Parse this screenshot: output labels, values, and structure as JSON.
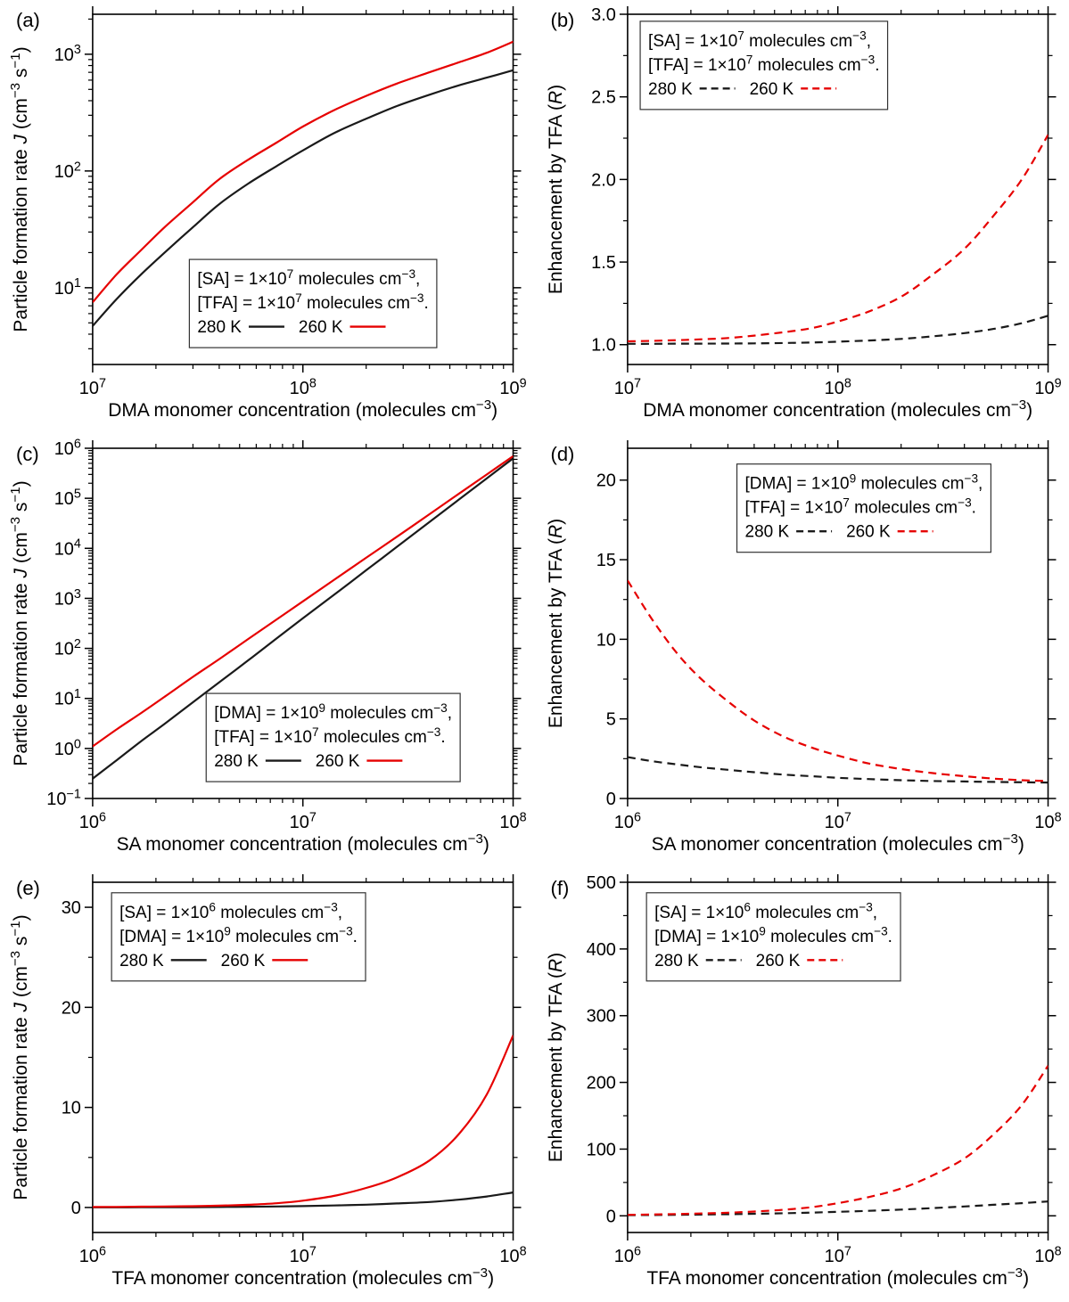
{
  "figure": {
    "background": "#ffffff"
  },
  "colors": {
    "black": "#1a1a1a",
    "red": "#e60000",
    "axis": "#000000",
    "legend_border": "#333333"
  },
  "chart_data": [
    {
      "id": "a",
      "panel_label": "(a)",
      "type": "line",
      "xlabel": "DMA monomer concentration (molecules cm^{−3})",
      "ylabel": "Particle formation rate *J* (cm^{−3} s^{−1})",
      "x": {
        "scale": "log",
        "min": 10000000.0,
        "max": 1000000000.0,
        "majors": [
          {
            "v": 10000000.0,
            "label": "10^{7}"
          },
          {
            "v": 100000000.0,
            "label": "10^{8}"
          },
          {
            "v": 1000000000.0,
            "label": "10^{9}"
          }
        ]
      },
      "y": {
        "scale": "log",
        "min": 2.2,
        "max": 2200,
        "majors": [
          {
            "v": 10,
            "label": "10^{1}"
          },
          {
            "v": 100,
            "label": "10^{2}"
          },
          {
            "v": 1000,
            "label": "10^{3}"
          }
        ]
      },
      "legend": {
        "fx": 0.23,
        "fy": 0.7,
        "lines": [
          "[SA] = 1×10^{7} molecules cm^{−3},",
          "[TFA] = 1×10^{7} molecules cm^{−3}."
        ],
        "entries": [
          {
            "label": "280 K",
            "color": "black",
            "dash": false
          },
          {
            "label": "260 K",
            "color": "red",
            "dash": false
          }
        ]
      },
      "series": [
        {
          "name": "280 K",
          "color": "black",
          "dash": false,
          "x": [
            10000000.0,
            13000000.0,
            17000000.0,
            22000000.0,
            30000000.0,
            40000000.0,
            55000000.0,
            75000000.0,
            100000000.0,
            140000000.0,
            200000000.0,
            280000000.0,
            400000000.0,
            550000000.0,
            750000000.0,
            1000000000.0
          ],
          "y": [
            4.7,
            8,
            13,
            20,
            33,
            52,
            78,
            110,
            150,
            210,
            280,
            360,
            450,
            540,
            630,
            730
          ]
        },
        {
          "name": "260 K",
          "color": "red",
          "dash": false,
          "x": [
            10000000.0,
            13000000.0,
            17000000.0,
            22000000.0,
            30000000.0,
            40000000.0,
            55000000.0,
            75000000.0,
            100000000.0,
            140000000.0,
            200000000.0,
            280000000.0,
            400000000.0,
            550000000.0,
            750000000.0,
            1000000000.0
          ],
          "y": [
            7.5,
            13,
            21,
            33,
            54,
            85,
            125,
            175,
            240,
            330,
            440,
            560,
            700,
            850,
            1030,
            1280
          ]
        }
      ]
    },
    {
      "id": "b",
      "panel_label": "(b)",
      "type": "line",
      "xlabel": "DMA monomer concentration (molecules cm^{−3})",
      "ylabel": "Enhancement by TFA (*R*)",
      "x": {
        "scale": "log",
        "min": 10000000.0,
        "max": 1000000000.0,
        "majors": [
          {
            "v": 10000000.0,
            "label": "10^{7}"
          },
          {
            "v": 100000000.0,
            "label": "10^{8}"
          },
          {
            "v": 1000000000.0,
            "label": "10^{9}"
          }
        ]
      },
      "y": {
        "scale": "linear",
        "min": 0.88,
        "max": 3.0,
        "minor": 0.25,
        "majors": [
          {
            "v": 1.0,
            "label": "1.0"
          },
          {
            "v": 1.5,
            "label": "1.5"
          },
          {
            "v": 2.0,
            "label": "2.0"
          },
          {
            "v": 2.5,
            "label": "2.5"
          },
          {
            "v": 3.0,
            "label": "3.0"
          }
        ]
      },
      "legend": {
        "fx": 0.03,
        "fy": 0.02,
        "lines": [
          "[SA] = 1×10^{7} molecules cm^{−3},",
          "[TFA] = 1×10^{7} molecules cm^{−3}."
        ],
        "entries": [
          {
            "label": "280 K",
            "color": "black",
            "dash": true
          },
          {
            "label": "260 K",
            "color": "red",
            "dash": true
          }
        ]
      },
      "series": [
        {
          "name": "280 K",
          "color": "black",
          "dash": true,
          "x": [
            10000000.0,
            13000000.0,
            17000000.0,
            22000000.0,
            30000000.0,
            40000000.0,
            55000000.0,
            75000000.0,
            100000000.0,
            140000000.0,
            200000000.0,
            280000000.0,
            400000000.0,
            550000000.0,
            750000000.0,
            1000000000.0
          ],
          "y": [
            1.005,
            1.005,
            1.006,
            1.006,
            1.007,
            1.008,
            1.01,
            1.013,
            1.018,
            1.025,
            1.035,
            1.05,
            1.07,
            1.095,
            1.13,
            1.175
          ]
        },
        {
          "name": "260 K",
          "color": "red",
          "dash": true,
          "x": [
            10000000.0,
            13000000.0,
            17000000.0,
            22000000.0,
            30000000.0,
            40000000.0,
            55000000.0,
            75000000.0,
            100000000.0,
            140000000.0,
            200000000.0,
            280000000.0,
            400000000.0,
            550000000.0,
            750000000.0,
            1000000000.0
          ],
          "y": [
            1.02,
            1.023,
            1.027,
            1.032,
            1.04,
            1.055,
            1.075,
            1.1,
            1.14,
            1.2,
            1.29,
            1.42,
            1.58,
            1.78,
            2.0,
            2.27
          ]
        }
      ]
    },
    {
      "id": "c",
      "panel_label": "(c)",
      "type": "line",
      "xlabel": "SA monomer concentration (molecules cm^{−3})",
      "ylabel": "Particle formation rate *J* (cm^{−3} s^{−1})",
      "x": {
        "scale": "log",
        "min": 1000000.0,
        "max": 100000000.0,
        "majors": [
          {
            "v": 1000000.0,
            "label": "10^{6}"
          },
          {
            "v": 10000000.0,
            "label": "10^{7}"
          },
          {
            "v": 100000000.0,
            "label": "10^{8}"
          }
        ]
      },
      "y": {
        "scale": "log",
        "min": 0.1,
        "max": 1000000.0,
        "majors": [
          {
            "v": 0.1,
            "label": "10^{−1}"
          },
          {
            "v": 1,
            "label": "10^{0}"
          },
          {
            "v": 10,
            "label": "10^{1}"
          },
          {
            "v": 100,
            "label": "10^{2}"
          },
          {
            "v": 1000,
            "label": "10^{3}"
          },
          {
            "v": 10000.0,
            "label": "10^{4}"
          },
          {
            "v": 100000.0,
            "label": "10^{5}"
          },
          {
            "v": 1000000.0,
            "label": "10^{6}"
          }
        ]
      },
      "legend": {
        "fx": 0.27,
        "fy": 0.7,
        "lines": [
          "[DMA] = 1×10^{9} molecules cm^{−3},",
          "[TFA] = 1×10^{7} molecules cm^{−3}."
        ],
        "entries": [
          {
            "label": "280 K",
            "color": "black",
            "dash": false
          },
          {
            "label": "260 K",
            "color": "red",
            "dash": false
          }
        ]
      },
      "series": [
        {
          "name": "280 K",
          "color": "black",
          "dash": false,
          "x": [
            1000000.0,
            1300000.0,
            1700000.0,
            2200000.0,
            3000000.0,
            4000000.0,
            5500000.0,
            7500000.0,
            10000000.0,
            14000000.0,
            20000000.0,
            28000000.0,
            40000000.0,
            55000000.0,
            75000000.0,
            100000000.0
          ],
          "y": [
            0.25,
            0.58,
            1.4,
            3.1,
            8.4,
            21,
            58,
            158,
            400,
            1160,
            3640,
            10700,
            33500,
            93000,
            250000,
            630000
          ]
        },
        {
          "name": "260 K",
          "color": "red",
          "dash": false,
          "x": [
            1000000.0,
            1300000.0,
            1700000.0,
            2200000.0,
            3000000.0,
            4000000.0,
            5500000.0,
            7500000.0,
            10000000.0,
            14000000.0,
            20000000.0,
            28000000.0,
            40000000.0,
            55000000.0,
            75000000.0,
            100000000.0
          ],
          "y": [
            1.1,
            2.4,
            5.1,
            10.8,
            27,
            61,
            154,
            378,
            870,
            2310,
            6480,
            17000,
            48000,
            122000,
            300000,
            693000
          ]
        }
      ]
    },
    {
      "id": "d",
      "panel_label": "(d)",
      "type": "line",
      "xlabel": "SA monomer concentration (molecules cm^{−3})",
      "ylabel": "Enhancement by TFA (*R*)",
      "x": {
        "scale": "log",
        "min": 1000000.0,
        "max": 100000000.0,
        "majors": [
          {
            "v": 1000000.0,
            "label": "10^{6}"
          },
          {
            "v": 10000000.0,
            "label": "10^{7}"
          },
          {
            "v": 100000000.0,
            "label": "10^{8}"
          }
        ]
      },
      "y": {
        "scale": "linear",
        "min": 0,
        "max": 22,
        "minor": 2.5,
        "majors": [
          {
            "v": 0,
            "label": "0"
          },
          {
            "v": 5,
            "label": "5"
          },
          {
            "v": 10,
            "label": "10"
          },
          {
            "v": 15,
            "label": "15"
          },
          {
            "v": 20,
            "label": "20"
          }
        ]
      },
      "legend": {
        "fx": 0.26,
        "fy": 0.045,
        "lines": [
          "[DMA] = 1×10^{9} molecules cm^{−3},",
          "[TFA] = 1×10^{7} molecules cm^{−3}."
        ],
        "entries": [
          {
            "label": "280 K",
            "color": "black",
            "dash": true
          },
          {
            "label": "260 K",
            "color": "red",
            "dash": true
          }
        ]
      },
      "series": [
        {
          "name": "280 K",
          "color": "black",
          "dash": true,
          "x": [
            1000000.0,
            1300000.0,
            1700000.0,
            2200000.0,
            3000000.0,
            4000000.0,
            5500000.0,
            7500000.0,
            10000000.0,
            14000000.0,
            20000000.0,
            28000000.0,
            40000000.0,
            55000000.0,
            75000000.0,
            100000000.0
          ],
          "y": [
            2.6,
            2.35,
            2.15,
            1.97,
            1.8,
            1.65,
            1.5,
            1.4,
            1.3,
            1.22,
            1.15,
            1.1,
            1.07,
            1.04,
            1.02,
            1.0
          ]
        },
        {
          "name": "260 K",
          "color": "red",
          "dash": true,
          "x": [
            1000000.0,
            1300000.0,
            1700000.0,
            2200000.0,
            3000000.0,
            4000000.0,
            5500000.0,
            7500000.0,
            10000000.0,
            14000000.0,
            20000000.0,
            28000000.0,
            40000000.0,
            55000000.0,
            75000000.0,
            100000000.0
          ],
          "y": [
            13.7,
            11.3,
            9.2,
            7.6,
            6.1,
            4.9,
            3.9,
            3.2,
            2.7,
            2.2,
            1.85,
            1.6,
            1.4,
            1.25,
            1.15,
            1.1
          ]
        }
      ]
    },
    {
      "id": "e",
      "panel_label": "(e)",
      "type": "line",
      "xlabel": "TFA monomer concentration (molecules cm^{−3})",
      "ylabel": "Particle formation rate *J* (cm^{−3} s^{−1})",
      "x": {
        "scale": "log",
        "min": 1000000.0,
        "max": 100000000.0,
        "majors": [
          {
            "v": 1000000.0,
            "label": "10^{6}"
          },
          {
            "v": 10000000.0,
            "label": "10^{7}"
          },
          {
            "v": 100000000.0,
            "label": "10^{8}"
          }
        ]
      },
      "y": {
        "scale": "linear",
        "min": -2.5,
        "max": 32.5,
        "minor": 5,
        "majors": [
          {
            "v": 0,
            "label": "0"
          },
          {
            "v": 10,
            "label": "10"
          },
          {
            "v": 20,
            "label": "20"
          },
          {
            "v": 30,
            "label": "30"
          }
        ]
      },
      "legend": {
        "fx": 0.045,
        "fy": 0.03,
        "lines": [
          "[SA] = 1×10^{6} molecules cm^{−3},",
          "[DMA] = 1×10^{9} molecules cm^{−3}."
        ],
        "entries": [
          {
            "label": "280 K",
            "color": "black",
            "dash": false
          },
          {
            "label": "260 K",
            "color": "red",
            "dash": false
          }
        ]
      },
      "series": [
        {
          "name": "280 K",
          "color": "black",
          "dash": false,
          "x": [
            1000000.0,
            1300000.0,
            1700000.0,
            2200000.0,
            3000000.0,
            4000000.0,
            5500000.0,
            7500000.0,
            10000000.0,
            14000000.0,
            20000000.0,
            28000000.0,
            40000000.0,
            55000000.0,
            75000000.0,
            100000000.0
          ],
          "y": [
            0.01,
            0.01,
            0.02,
            0.02,
            0.03,
            0.05,
            0.07,
            0.1,
            0.14,
            0.2,
            0.28,
            0.4,
            0.55,
            0.78,
            1.1,
            1.5
          ]
        },
        {
          "name": "260 K",
          "color": "red",
          "dash": false,
          "x": [
            1000000.0,
            1300000.0,
            1700000.0,
            2200000.0,
            3000000.0,
            4000000.0,
            5500000.0,
            7500000.0,
            10000000.0,
            14000000.0,
            20000000.0,
            28000000.0,
            40000000.0,
            55000000.0,
            75000000.0,
            100000000.0
          ],
          "y": [
            0.05,
            0.06,
            0.08,
            0.1,
            0.13,
            0.18,
            0.27,
            0.42,
            0.68,
            1.15,
            1.95,
            3.0,
            4.7,
            7.3,
            11.3,
            17.2
          ]
        }
      ]
    },
    {
      "id": "f",
      "panel_label": "(f)",
      "type": "line",
      "xlabel": "TFA monomer concentration (molecules cm^{−3})",
      "ylabel": "Enhancement by TFA (*R*)",
      "x": {
        "scale": "log",
        "min": 1000000.0,
        "max": 100000000.0,
        "majors": [
          {
            "v": 1000000.0,
            "label": "10^{6}"
          },
          {
            "v": 10000000.0,
            "label": "10^{7}"
          },
          {
            "v": 100000000.0,
            "label": "10^{8}"
          }
        ]
      },
      "y": {
        "scale": "linear",
        "min": -25,
        "max": 500,
        "minor": 50,
        "majors": [
          {
            "v": 0,
            "label": "0"
          },
          {
            "v": 100,
            "label": "100"
          },
          {
            "v": 200,
            "label": "200"
          },
          {
            "v": 300,
            "label": "300"
          },
          {
            "v": 400,
            "label": "400"
          },
          {
            "v": 500,
            "label": "500"
          }
        ]
      },
      "legend": {
        "fx": 0.045,
        "fy": 0.03,
        "lines": [
          "[SA] = 1×10^{6} molecules cm^{−3},",
          "[DMA] = 1×10^{9} molecules cm^{−3}."
        ],
        "entries": [
          {
            "label": "280 K",
            "color": "black",
            "dash": true
          },
          {
            "label": "260 K",
            "color": "red",
            "dash": true
          }
        ]
      },
      "series": [
        {
          "name": "280 K",
          "color": "black",
          "dash": true,
          "x": [
            1000000.0,
            1300000.0,
            1700000.0,
            2200000.0,
            3000000.0,
            4000000.0,
            5500000.0,
            7500000.0,
            10000000.0,
            14000000.0,
            20000000.0,
            28000000.0,
            40000000.0,
            55000000.0,
            75000000.0,
            100000000.0
          ],
          "y": [
            1,
            1.2,
            1.5,
            1.9,
            2.4,
            3,
            3.8,
            4.8,
            6,
            7.5,
            9.3,
            11.5,
            14,
            16.5,
            19,
            21.5
          ]
        },
        {
          "name": "260 K",
          "color": "red",
          "dash": true,
          "x": [
            1000000.0,
            1300000.0,
            1700000.0,
            2200000.0,
            3000000.0,
            4000000.0,
            5500000.0,
            7500000.0,
            10000000.0,
            14000000.0,
            20000000.0,
            28000000.0,
            40000000.0,
            55000000.0,
            75000000.0,
            100000000.0
          ],
          "y": [
            1.5,
            2,
            2.6,
            3.4,
            4.6,
            6.4,
            9,
            13,
            19,
            28,
            41,
            60,
            86,
            122,
            166,
            225
          ]
        }
      ]
    }
  ]
}
